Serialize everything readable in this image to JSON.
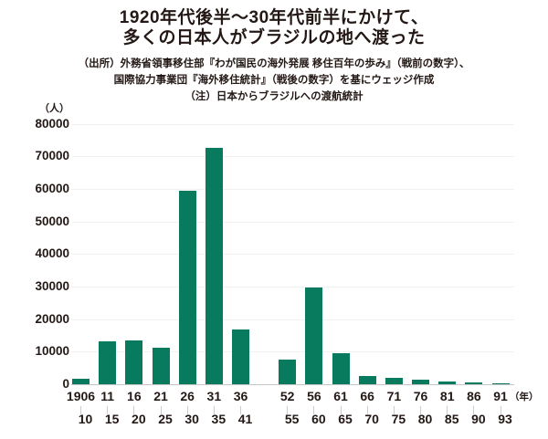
{
  "title": {
    "line1": "1920年代後半～30年代前半にかけて、",
    "line2": "多くの日本人がブラジルの地へ渡った"
  },
  "source": {
    "line1": "（出所）外務省領事移住部『わが国民の海外発展 移住百年の歩み』（戦前の数字）、",
    "line2": "国際協力事業団『海外移住統計』（戦後の数字）を基にウェッジ作成",
    "line3": "（注）日本からブラジルへの渡航統計"
  },
  "chart_data": {
    "type": "bar",
    "title": "1920年代後半～30年代前半にかけて、多くの日本人がブラジルの地へ渡った",
    "unit_label": "（人）",
    "year_unit_label": "（年）",
    "categories": [
      {
        "top": "1906",
        "bottom": "10"
      },
      {
        "top": "11",
        "bottom": "15"
      },
      {
        "top": "16",
        "bottom": "20"
      },
      {
        "top": "21",
        "bottom": "25"
      },
      {
        "top": "26",
        "bottom": "30"
      },
      {
        "top": "31",
        "bottom": "35"
      },
      {
        "top": "36",
        "bottom": "41"
      },
      {
        "top": "52",
        "bottom": "55"
      },
      {
        "top": "56",
        "bottom": "60"
      },
      {
        "top": "61",
        "bottom": "65"
      },
      {
        "top": "66",
        "bottom": "70"
      },
      {
        "top": "71",
        "bottom": "75"
      },
      {
        "top": "76",
        "bottom": "80"
      },
      {
        "top": "81",
        "bottom": "85"
      },
      {
        "top": "86",
        "bottom": "90"
      },
      {
        "top": "91",
        "bottom": "93"
      }
    ],
    "values": [
      1700,
      13300,
      13500,
      11300,
      59500,
      72500,
      16800,
      7700,
      29700,
      9500,
      2600,
      2000,
      1500,
      850,
      480,
      280
    ],
    "ylim": [
      0,
      80000
    ],
    "ytick_interval": 10000,
    "ytick_labels": [
      "80000",
      "70000",
      "60000",
      "50000",
      "40000",
      "30000",
      "20000",
      "10000",
      "0"
    ],
    "grid": true,
    "legend": false,
    "gap_after_index": 6,
    "bar_color": "#087a5e"
  },
  "colors": {
    "bar": "#087a5e",
    "text": "#231815",
    "gridline": "#f2f2f2",
    "axis_line": "#c5c5c5",
    "tick": "#cccccc",
    "background": "#ffffff"
  }
}
